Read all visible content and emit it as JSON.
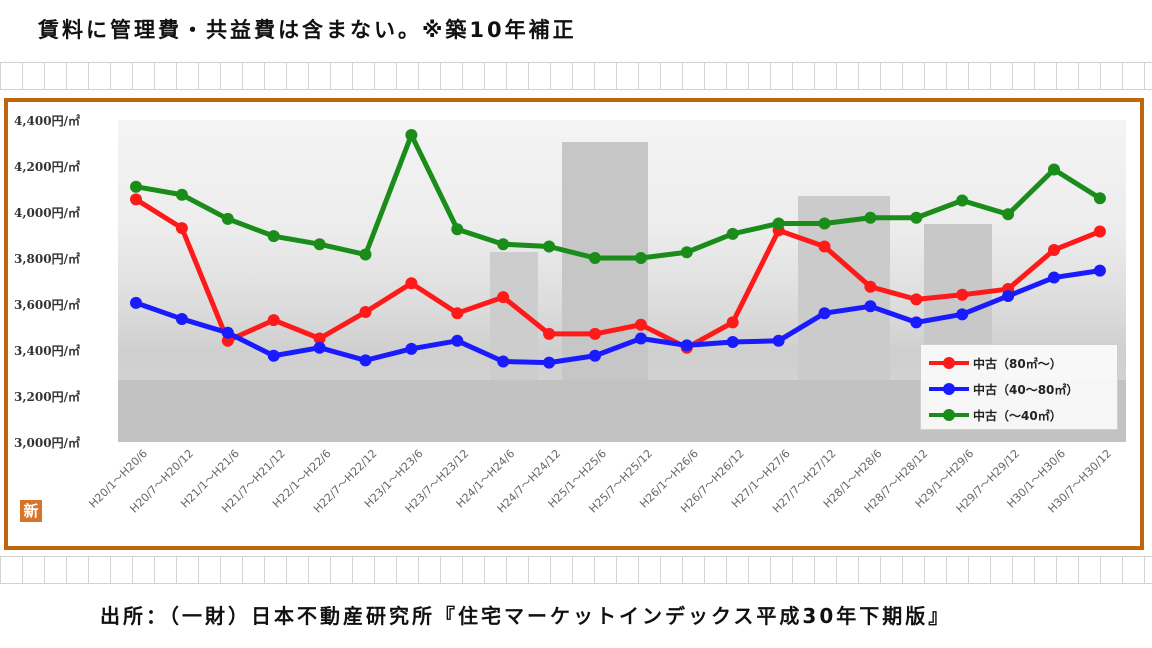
{
  "header": {
    "note": "賃料に管理費・共益費は含まない。※築10年補正"
  },
  "footer": {
    "source": "出所：（一財）日本不動産研究所『住宅マーケットインデックス平成30年下期版』"
  },
  "badge": {
    "label": "新"
  },
  "colors": {
    "frame": "#c0650f",
    "red": "#ff1a1a",
    "blue": "#1a1aff",
    "green": "#1a8c1a",
    "badge": "#d7742b"
  },
  "chart_data": {
    "type": "line",
    "ylim": [
      3000,
      4400
    ],
    "yticks": [
      "3,000円/㎡",
      "3,200円/㎡",
      "3,400円/㎡",
      "3,600円/㎡",
      "3,800円/㎡",
      "4,000円/㎡",
      "4,200円/㎡",
      "4,400円/㎡"
    ],
    "categories": [
      "H20/1～H20/6",
      "H20/7～H20/12",
      "H21/1～H21/6",
      "H21/7～H21/12",
      "H22/1～H22/6",
      "H22/7～H22/12",
      "H23/1～H23/6",
      "H23/7～H23/12",
      "H24/1～H24/6",
      "H24/7～H24/12",
      "H25/1～H25/6",
      "H25/7～H25/12",
      "H26/1～H26/6",
      "H26/7～H26/12",
      "H27/1～H27/6",
      "H27/7～H27/12",
      "H28/1～H28/6",
      "H28/7～H28/12",
      "H29/1～H29/6",
      "H29/7～H29/12",
      "H30/1～H30/6",
      "H30/7～H30/12"
    ],
    "series": [
      {
        "name": "中古（80㎡～）",
        "color": "#ff1a1a",
        "values": [
          4055,
          3930,
          3440,
          3530,
          3450,
          3565,
          3690,
          3560,
          3630,
          3470,
          3470,
          3510,
          3410,
          3520,
          3920,
          3850,
          3675,
          3620,
          3640,
          3665,
          3835,
          3915
        ]
      },
      {
        "name": "中古（40～80㎡）",
        "color": "#1a1aff",
        "values": [
          3605,
          3535,
          3475,
          3375,
          3410,
          3355,
          3405,
          3440,
          3350,
          3345,
          3375,
          3450,
          3420,
          3435,
          3440,
          3560,
          3590,
          3520,
          3555,
          3635,
          3715,
          3745
        ]
      },
      {
        "name": "中古（～40㎡）",
        "color": "#1a8c1a",
        "values": [
          4110,
          4075,
          3970,
          3895,
          3860,
          3815,
          4335,
          3925,
          3860,
          3850,
          3800,
          3800,
          3825,
          3905,
          3950,
          3950,
          3975,
          3975,
          4050,
          3990,
          4185,
          4060
        ]
      }
    ]
  }
}
